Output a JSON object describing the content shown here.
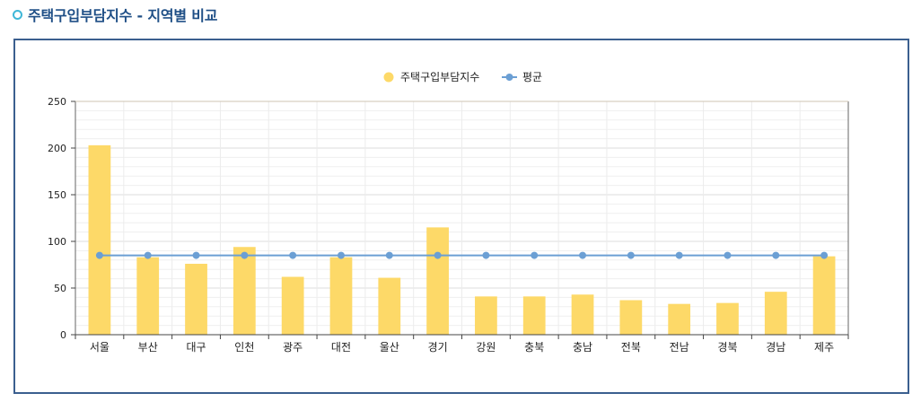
{
  "page": {
    "title": "주택구입부담지수 - 지역별 비교"
  },
  "colors": {
    "bar": "#fdd968",
    "line": "#6b9fd4",
    "title": "#1f4f86",
    "panel_border": "#3b5f8f",
    "title_icon": "#3fb7d8"
  },
  "chart_data": {
    "type": "bar",
    "categories": [
      "서울",
      "부산",
      "대구",
      "인천",
      "광주",
      "대전",
      "울산",
      "경기",
      "강원",
      "충북",
      "충남",
      "전북",
      "전남",
      "경북",
      "경남",
      "제주"
    ],
    "series": [
      {
        "name": "주택구입부담지수",
        "type": "bar",
        "values": [
          203,
          83,
          76,
          94,
          62,
          83,
          61,
          115,
          41,
          41,
          43,
          37,
          33,
          34,
          46,
          84
        ]
      },
      {
        "name": "평균",
        "type": "line",
        "values": [
          85,
          85,
          85,
          85,
          85,
          85,
          85,
          85,
          85,
          85,
          85,
          85,
          85,
          85,
          85,
          85
        ]
      }
    ],
    "y_ticks": [
      0,
      50,
      100,
      150,
      200,
      250
    ],
    "ylim": [
      0,
      250
    ],
    "grid": true,
    "legend_position": "top-center"
  }
}
